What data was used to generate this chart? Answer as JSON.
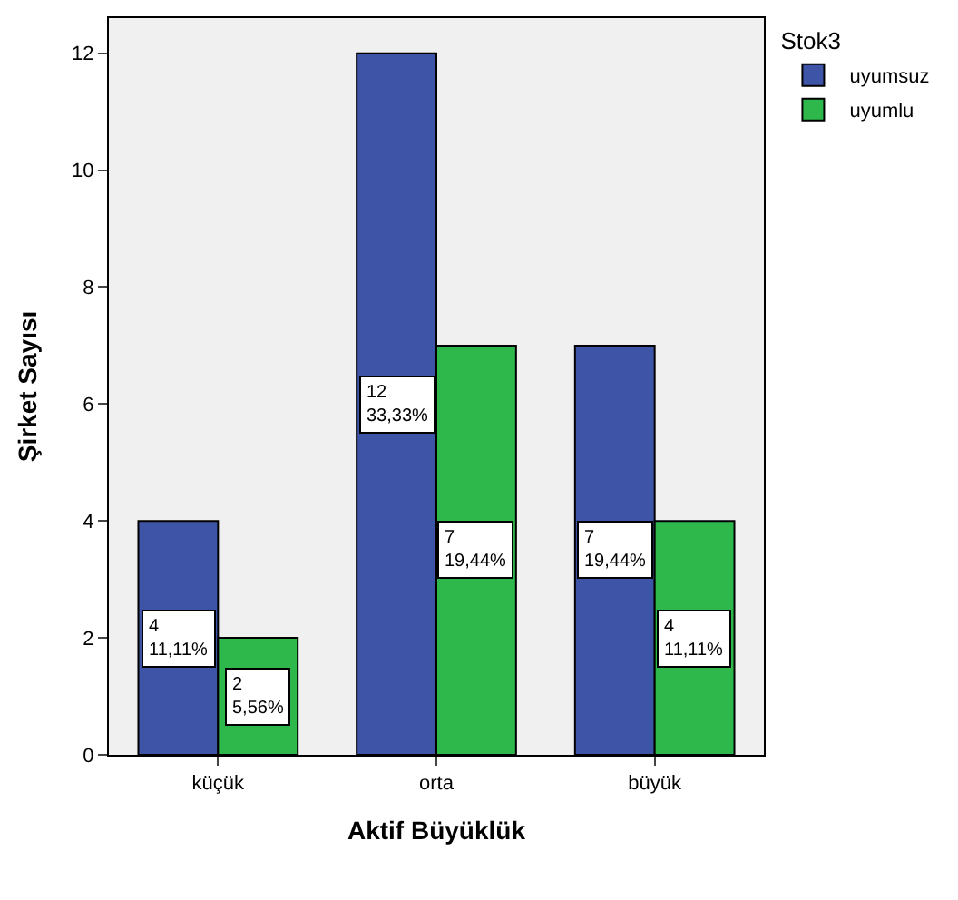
{
  "chart_data": {
    "type": "bar",
    "xlabel": "Aktif Büyüklük",
    "ylabel": "Şirket Sayısı",
    "legend_title": "Stok3",
    "legend": "top right",
    "grid": false,
    "categories": [
      "küçük",
      "orta",
      "büyük"
    ],
    "ylim": [
      0,
      12.6
    ],
    "yticks": [
      0,
      2,
      4,
      6,
      8,
      10,
      12
    ],
    "series": [
      {
        "name": "uyumsuz",
        "color": "#3e54a6",
        "values": [
          4,
          12,
          7
        ],
        "value_labels": [
          "4\n11,11%",
          "12\n33,33%",
          "7\n19,44%"
        ]
      },
      {
        "name": "uyumlu",
        "color": "#2eb84b",
        "values": [
          2,
          7,
          4
        ],
        "value_labels": [
          "2\n5,56%",
          "7\n19,44%",
          "4\n11,11%"
        ]
      }
    ]
  }
}
